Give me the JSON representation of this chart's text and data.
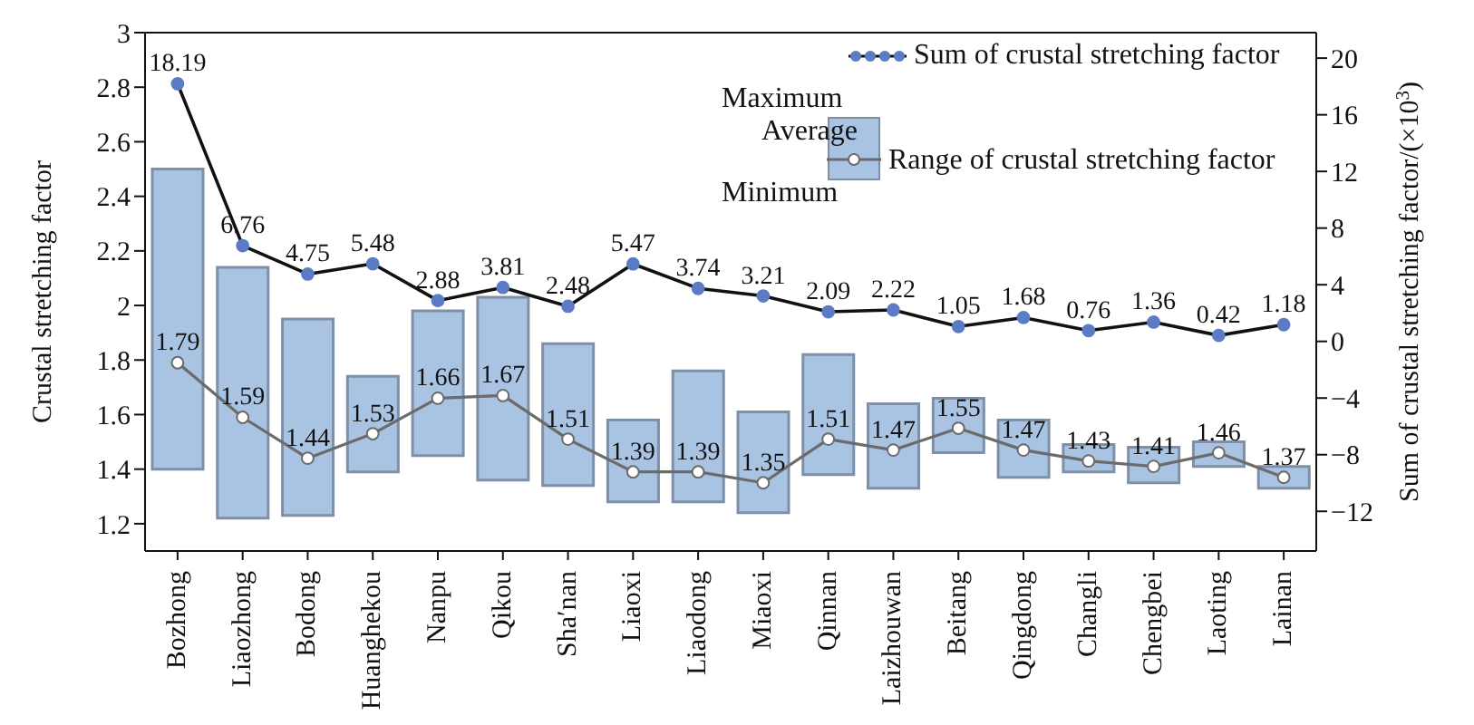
{
  "chart_data": {
    "type": "bar",
    "ylabel": "Crustal stretching factor",
    "y2label": "Sum of crustal stretching factor/(×10$^{3}$)",
    "categories": [
      "Bozhong",
      "Liaozhong",
      "Bodong",
      "Huanghekou",
      "Nanpu",
      "Qikou",
      "Sha′nan",
      "Liaoxi",
      "Liaodong",
      "Miaoxi",
      "Qinnan",
      "Laizhouwan",
      "Beitang",
      "Qingdong",
      "Changli",
      "Chengbei",
      "Laoting",
      "Lainan"
    ],
    "series": [
      {
        "name": "Range of crustal stretching factor",
        "color": "#a9c3e3",
        "base": [
          1.4,
          1.22,
          1.23,
          1.39,
          1.45,
          1.36,
          1.34,
          1.28,
          1.28,
          1.24,
          1.38,
          1.33,
          1.46,
          1.37,
          1.39,
          1.35,
          1.41,
          1.33
        ],
        "values": [
          1.1,
          0.92,
          0.72,
          0.35,
          0.53,
          0.67,
          0.52,
          0.3,
          0.48,
          0.37,
          0.44,
          0.31,
          0.2,
          0.21,
          0.1,
          0.13,
          0.09,
          0.08
        ]
      },
      {
        "type": "line",
        "color": "#6b6b6b",
        "marker": "circle",
        "values": [
          1.79,
          1.59,
          1.44,
          1.53,
          1.66,
          1.67,
          1.51,
          1.39,
          1.39,
          1.35,
          1.51,
          1.47,
          1.55,
          1.47,
          1.43,
          1.41,
          1.46,
          1.37
        ],
        "value_labels": [
          "1.79",
          "1.59",
          "1.44",
          "1.53",
          "1.66",
          "1.67",
          "1.51",
          "1.39",
          "1.39",
          "1.35",
          "1.51",
          "1.47",
          "1.55",
          "1.47",
          "1.43",
          "1.41",
          "1.46",
          "1.37"
        ]
      },
      {
        "name": "Sum of crustal stretching factor",
        "type": "line",
        "axis": "y2",
        "color": "#5b7cc4",
        "marker": "circle",
        "values": [
          18.19,
          6.76,
          4.75,
          5.48,
          2.88,
          3.81,
          2.48,
          5.47,
          3.74,
          3.21,
          2.09,
          2.22,
          1.05,
          1.68,
          0.76,
          1.36,
          0.42,
          1.18
        ],
        "value_labels": [
          "18.19",
          "6.76",
          "4.75",
          "5.48",
          "2.88",
          "3.81",
          "2.48",
          "5.47",
          "3.74",
          "3.21",
          "2.09",
          "2.22",
          "1.05",
          "1.68",
          "0.76",
          "1.36",
          "0.42",
          "1.18"
        ]
      }
    ],
    "ylim": [
      1.1,
      3
    ],
    "yticks": [
      1.2,
      1.4,
      1.6,
      1.8,
      2,
      2.2,
      2.4,
      2.6,
      2.8,
      3
    ],
    "y2lim": [
      -14.8,
      21.8
    ],
    "y2ticks": [
      {
        "value": -12,
        "label": "−12"
      },
      {
        "value": -8,
        "label": "−8"
      },
      {
        "value": -4,
        "label": "−4"
      },
      0,
      4,
      8,
      12,
      16,
      20
    ],
    "legend": "top right",
    "grid": false,
    "annotations": [
      "Maximum",
      "Average",
      "Minimum"
    ]
  }
}
